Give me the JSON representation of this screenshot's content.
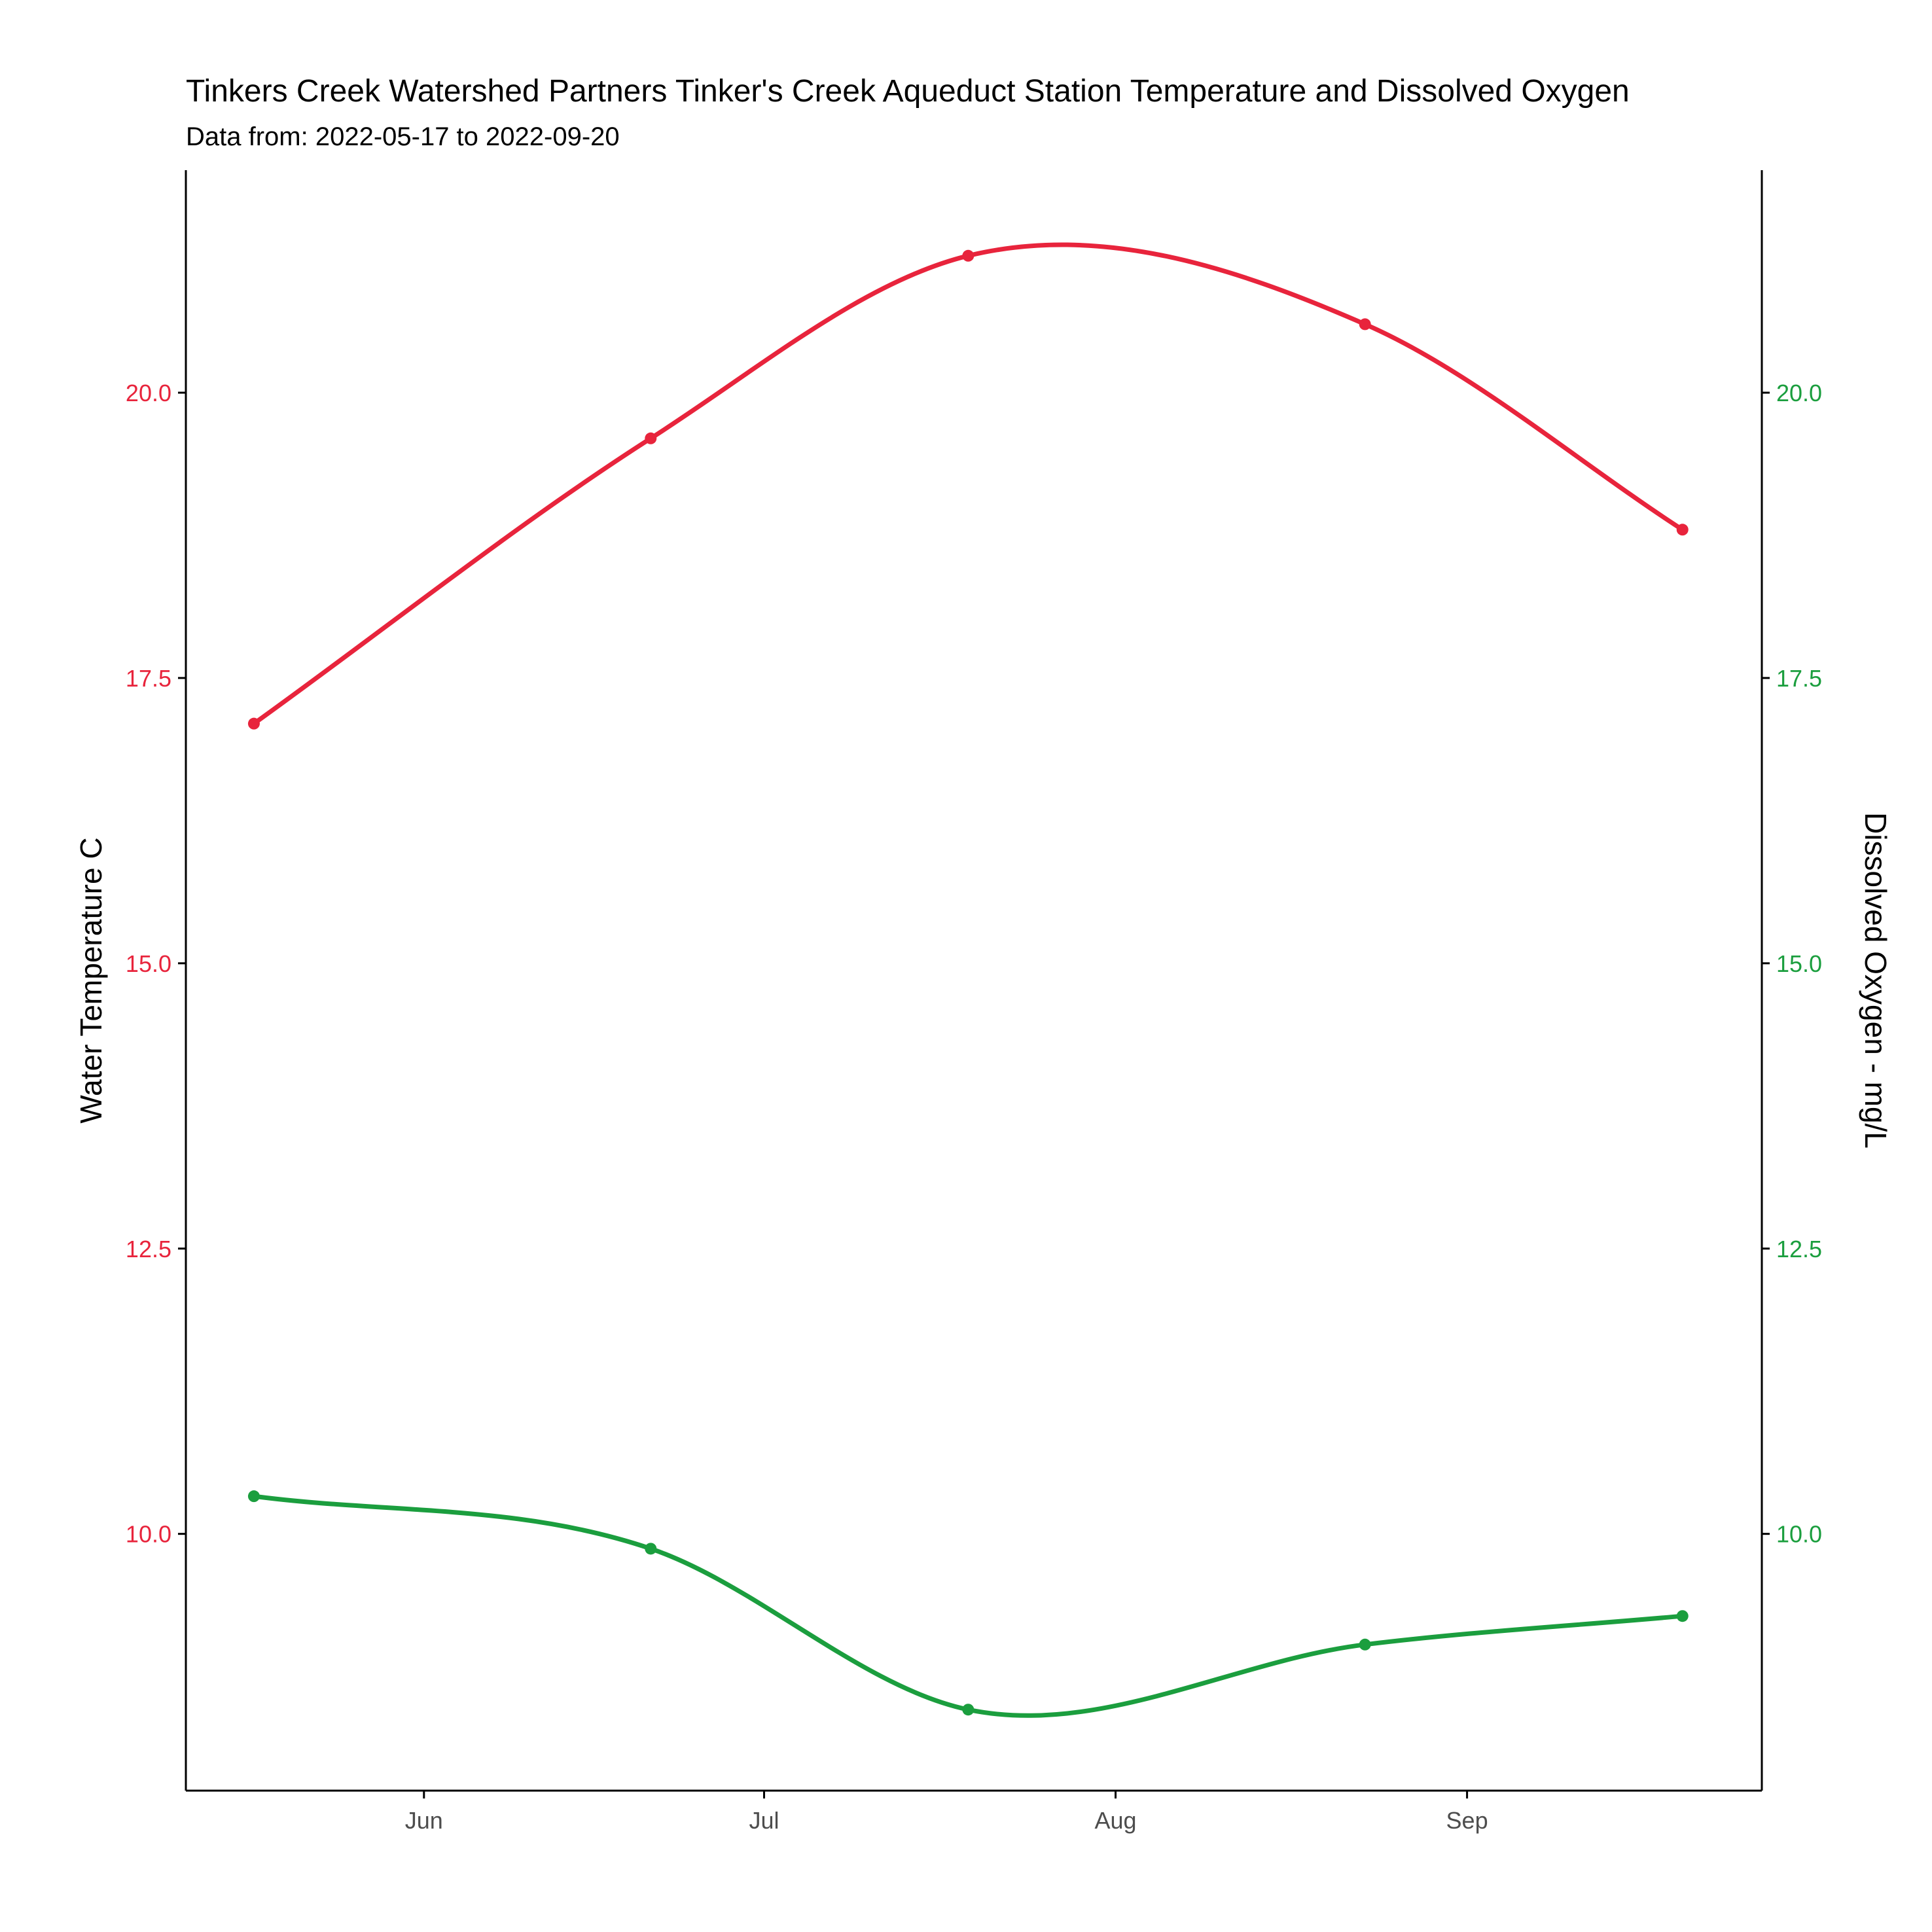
{
  "chart_data": {
    "type": "line",
    "title": "Tinkers Creek Watershed Partners Tinker's Creek Aqueduct Station Temperature and Dissolved Oxygen",
    "subtitle": "Data from: 2022-05-17 to 2022-09-20",
    "x": [
      "2022-05-17",
      "2022-06-21",
      "2022-07-19",
      "2022-08-23",
      "2022-09-20"
    ],
    "x_ticks": [
      {
        "label": "Jun",
        "date": "2022-06-01"
      },
      {
        "label": "Jul",
        "date": "2022-07-01"
      },
      {
        "label": "Aug",
        "date": "2022-08-01"
      },
      {
        "label": "Sep",
        "date": "2022-09-01"
      }
    ],
    "xlim": [
      "2022-05-11",
      "2022-09-27"
    ],
    "ylabel_left": "Water Temperature C",
    "ylabel_right": "Dissolved Oxygen - mg/L",
    "ylim": [
      7.75,
      21.95
    ],
    "y_ticks": [
      "10.0",
      "12.5",
      "15.0",
      "17.5",
      "20.0"
    ],
    "grid": false,
    "smooth": true,
    "series": [
      {
        "key": "temperature",
        "axis": "left",
        "color": "#e8243c",
        "values": [
          17.1,
          19.6,
          21.2,
          20.6,
          18.8
        ]
      },
      {
        "key": "dissolved_oxygen",
        "axis": "right",
        "color": "#1b9e3e",
        "values": [
          10.33,
          9.87,
          8.46,
          9.03,
          9.28
        ]
      }
    ],
    "axis_colors": {
      "left": "#e8243c",
      "right": "#1b9e3e",
      "x": "#4d4d4d"
    }
  }
}
